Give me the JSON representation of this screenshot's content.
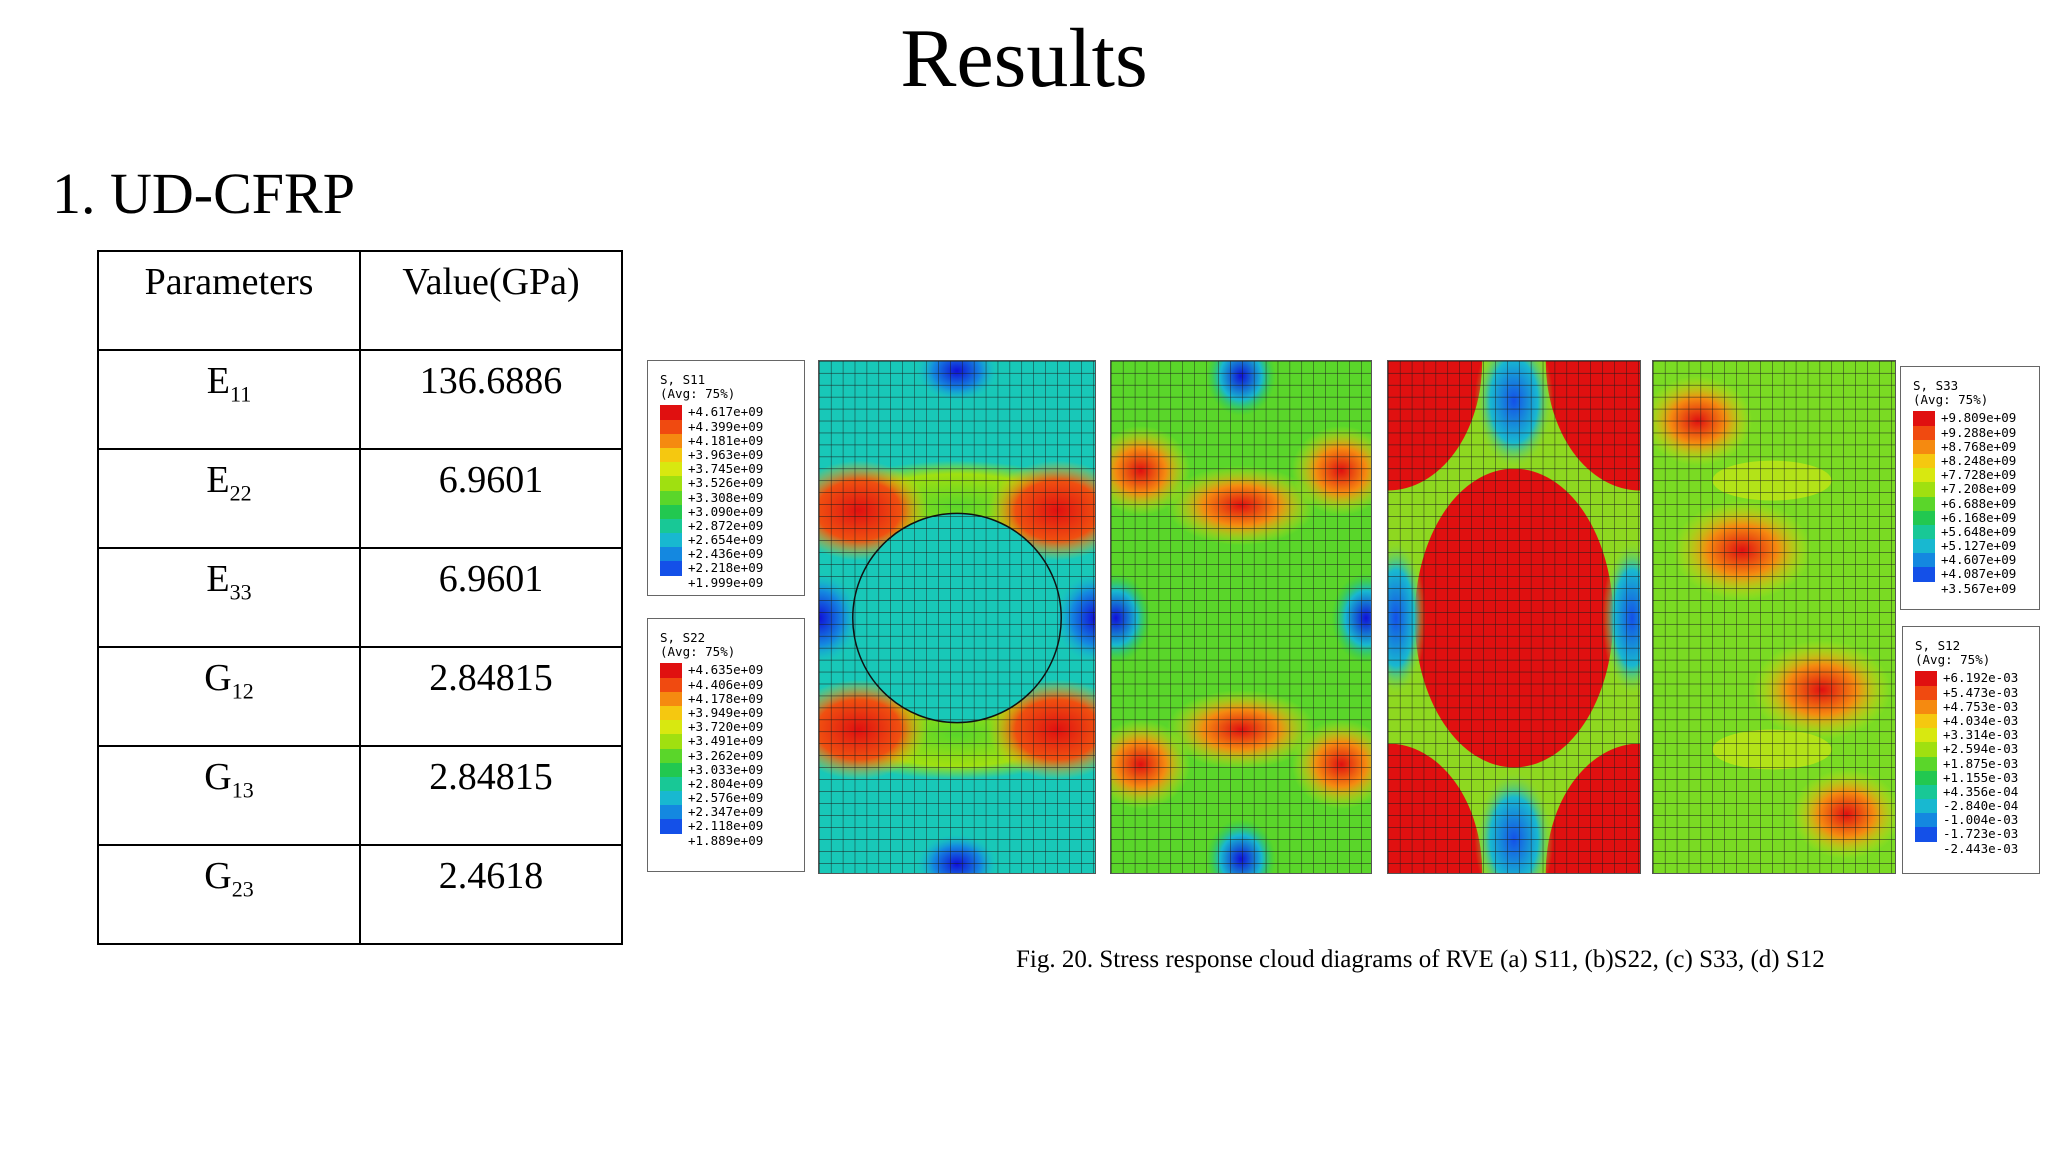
{
  "title": "Results",
  "section": "1. UD-CFRP",
  "table": {
    "headers": [
      "Parameters",
      "Value(GPa)"
    ],
    "rows": [
      {
        "symbol": "E",
        "sub": "11",
        "value": "136.6886"
      },
      {
        "symbol": "E",
        "sub": "22",
        "value": "6.9601"
      },
      {
        "symbol": "E",
        "sub": "33",
        "value": "6.9601"
      },
      {
        "symbol": "G",
        "sub": "12",
        "value": "2.84815"
      },
      {
        "symbol": "G",
        "sub": "13",
        "value": "2.84815"
      },
      {
        "symbol": "G",
        "sub": "23",
        "value": "2.4618"
      }
    ]
  },
  "legends": [
    {
      "id": "s11",
      "title": "S, S11",
      "avg": "(Avg: 75%)",
      "values": [
        "+4.617e+09",
        "+4.399e+09",
        "+4.181e+09",
        "+3.963e+09",
        "+3.745e+09",
        "+3.526e+09",
        "+3.308e+09",
        "+3.090e+09",
        "+2.872e+09",
        "+2.654e+09",
        "+2.436e+09",
        "+2.218e+09",
        "+1.999e+09"
      ]
    },
    {
      "id": "s22",
      "title": "S, S22",
      "avg": "(Avg: 75%)",
      "values": [
        "+4.635e+09",
        "+4.406e+09",
        "+4.178e+09",
        "+3.949e+09",
        "+3.720e+09",
        "+3.491e+09",
        "+3.262e+09",
        "+3.033e+09",
        "+2.804e+09",
        "+2.576e+09",
        "+2.347e+09",
        "+2.118e+09",
        "+1.889e+09"
      ]
    },
    {
      "id": "s33",
      "title": "S, S33",
      "avg": "(Avg: 75%)",
      "values": [
        "+9.809e+09",
        "+9.288e+09",
        "+8.768e+09",
        "+8.248e+09",
        "+7.728e+09",
        "+7.208e+09",
        "+6.688e+09",
        "+6.168e+09",
        "+5.648e+09",
        "+5.127e+09",
        "+4.607e+09",
        "+4.087e+09",
        "+3.567e+09"
      ]
    },
    {
      "id": "s12",
      "title": "S, S12",
      "avg": "(Avg: 75%)",
      "values": [
        "+6.192e-03",
        "+5.473e-03",
        "+4.753e-03",
        "+4.034e-03",
        "+3.314e-03",
        "+2.594e-03",
        "+1.875e-03",
        "+1.155e-03",
        "+4.356e-04",
        "-2.840e-04",
        "-1.004e-03",
        "-1.723e-03",
        "-2.443e-03"
      ]
    }
  ],
  "legend_colors": [
    "#e01010",
    "#f04a10",
    "#f58a10",
    "#f5c810",
    "#d8e810",
    "#a0e010",
    "#5ad62a",
    "#22c850",
    "#18c896",
    "#18b8d0",
    "#1488e0",
    "#1450e8",
    "#1010d8"
  ],
  "caption": "Fig. 20. Stress response cloud diagrams of RVE (a) S11, (b)S22, (c) S33, (d) S12"
}
